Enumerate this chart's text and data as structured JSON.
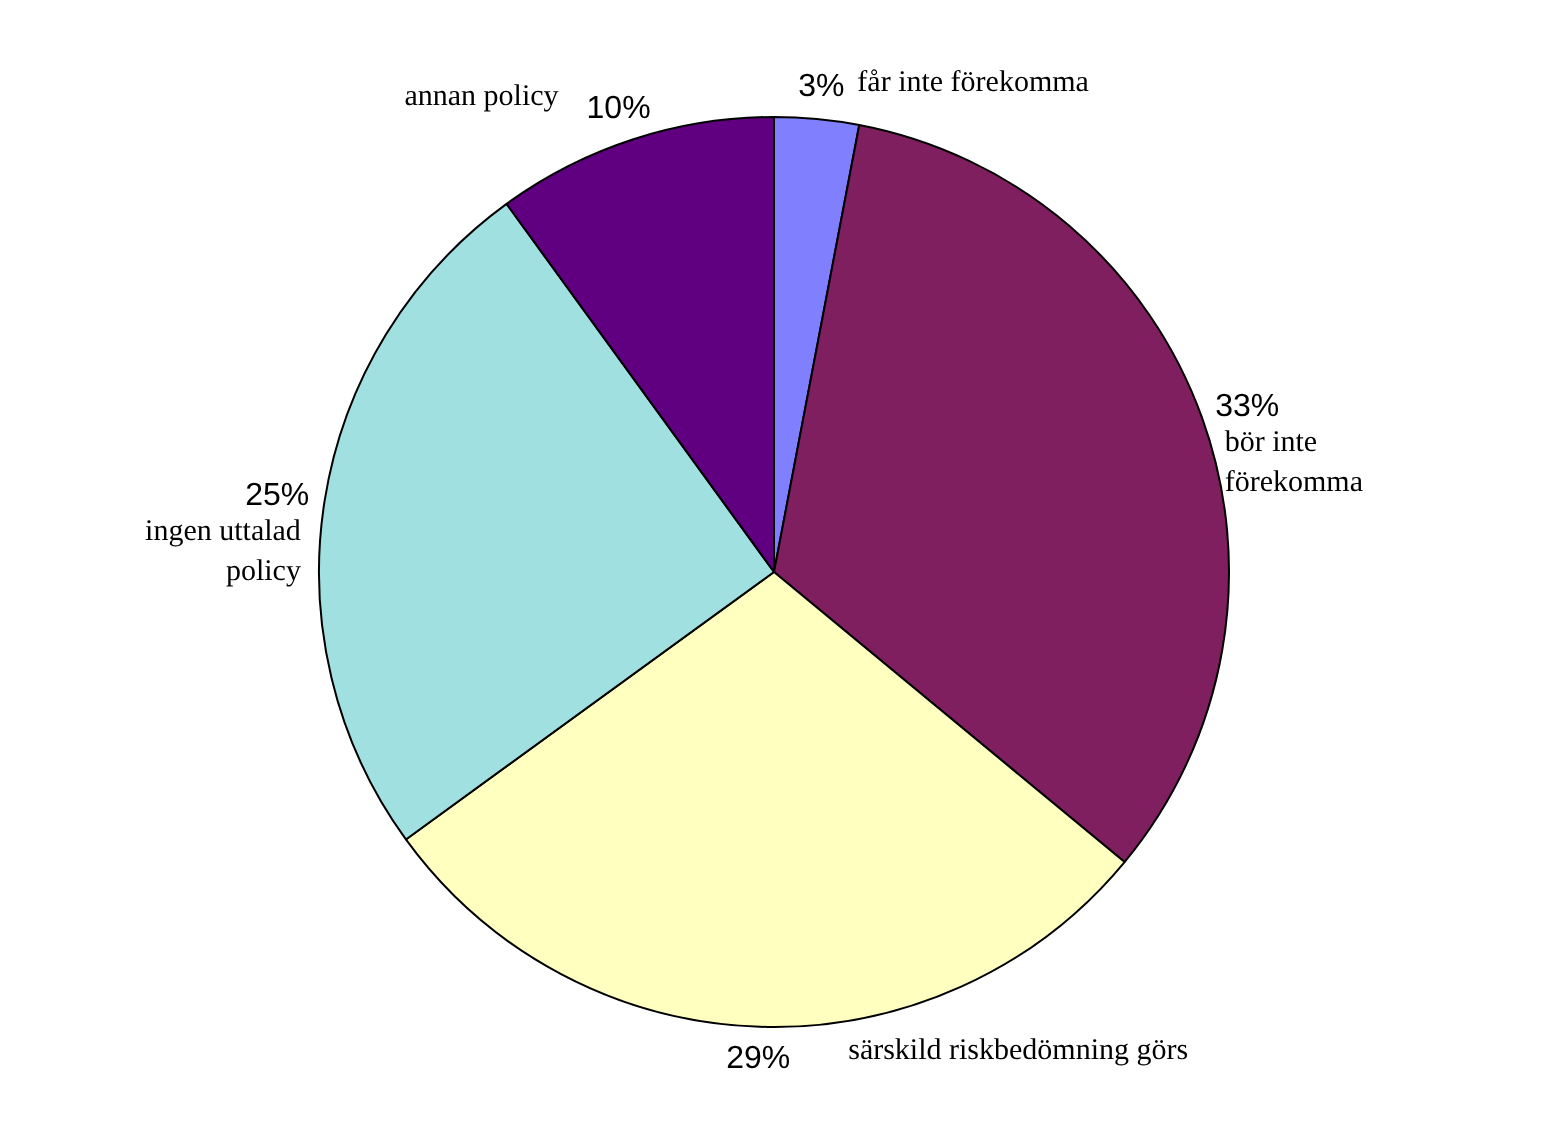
{
  "chart_data": {
    "type": "pie",
    "categories": [
      "får inte förekomma",
      "bör inte förekomma",
      "särskild riskbedömning görs",
      "ingen uttalad policy",
      "annan policy"
    ],
    "values": [
      3,
      33,
      29,
      25,
      10
    ],
    "colors": [
      "#8080ff",
      "#7f1f5f",
      "#ffffc0",
      "#a0e0e0",
      "#600080"
    ],
    "value_labels": [
      "3%",
      "33%",
      "29%",
      "25%",
      "10%"
    ],
    "legend": false
  }
}
